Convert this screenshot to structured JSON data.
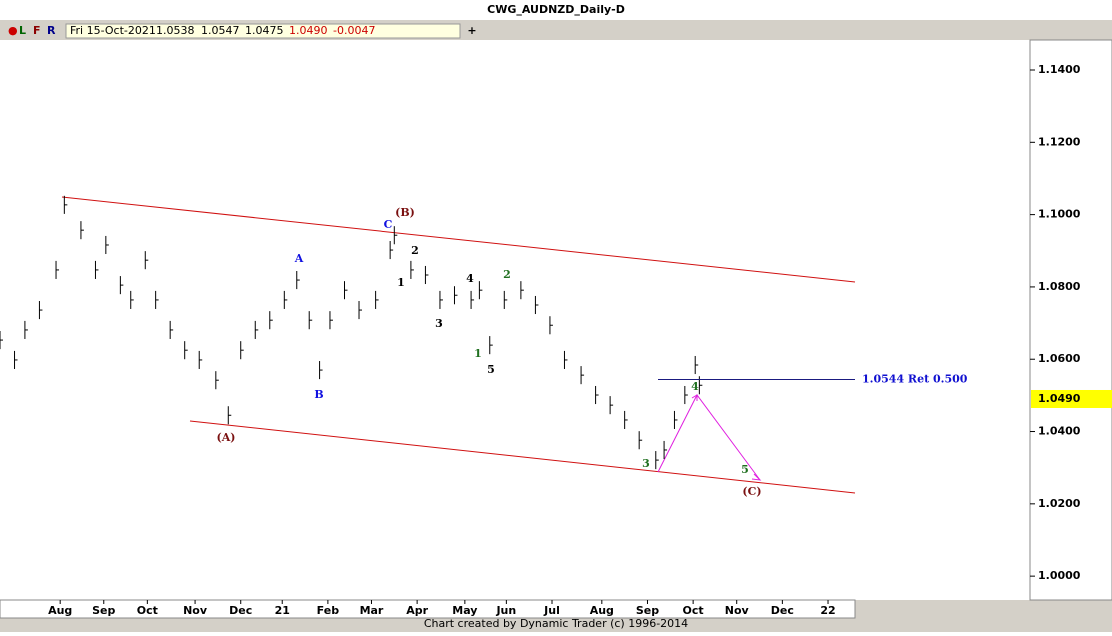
{
  "chart_data": {
    "type": "ohlc",
    "title": "CWG_AUDNZD_Daily-D",
    "info": {
      "menu": [
        "L",
        "F",
        "R"
      ],
      "date": "Fri 15-Oct-2021",
      "open": "1.0538",
      "high": "1.0547",
      "low": "1.0475",
      "close": "1.0490",
      "change": "-0.0047"
    },
    "footer": "Chart created by Dynamic Trader  (c) 1996-2014",
    "color": "#000000",
    "x": [
      0,
      7,
      12,
      19,
      27,
      31,
      39,
      46,
      51,
      58,
      63,
      70,
      75,
      82,
      89,
      96,
      104,
      110,
      116,
      123,
      130,
      137,
      143,
      149,
      154,
      159,
      166,
      173,
      181,
      188,
      190,
      198,
      205,
      212,
      219,
      227,
      231,
      236,
      243,
      251,
      258,
      265,
      272,
      280,
      287,
      294,
      301,
      308,
      316,
      320,
      325,
      330,
      335,
      337
    ],
    "high": [
      1.0678,
      1.0623,
      1.0706,
      1.0761,
      1.0872,
      1.1052,
      1.0982,
      1.0872,
      1.0941,
      1.083,
      1.0789,
      1.0899,
      1.0789,
      1.0706,
      1.065,
      1.0623,
      1.0567,
      1.047,
      1.065,
      1.0706,
      1.0733,
      1.0789,
      1.0844,
      1.0733,
      1.0595,
      1.0733,
      1.0816,
      1.0761,
      1.0789,
      1.0927,
      1.0968,
      1.0872,
      1.0858,
      1.0789,
      1.0802,
      1.0789,
      1.0816,
      1.0664,
      1.0789,
      1.0816,
      1.0775,
      1.0719,
      1.0623,
      1.0581,
      1.0526,
      1.0498,
      1.0457,
      1.0401,
      1.0346,
      1.0374,
      1.0457,
      1.0526,
      1.0609,
      1.0553
    ],
    "low": [
      1.0628,
      1.0573,
      1.0656,
      1.0711,
      1.0822,
      1.1002,
      1.0932,
      1.0822,
      1.0891,
      1.078,
      1.0739,
      1.0849,
      1.0739,
      1.0656,
      1.06,
      1.0573,
      1.0517,
      1.042,
      1.06,
      1.0656,
      1.0683,
      1.0739,
      1.0794,
      1.0683,
      1.0545,
      1.0683,
      1.0766,
      1.0711,
      1.0739,
      1.0877,
      1.0918,
      1.0822,
      1.0808,
      1.0739,
      1.0752,
      1.0739,
      1.0766,
      1.0614,
      1.0739,
      1.0766,
      1.0725,
      1.0669,
      1.0573,
      1.0531,
      1.0476,
      1.0448,
      1.0407,
      1.0351,
      1.0296,
      1.0324,
      1.0407,
      1.0476,
      1.0559,
      1.0503
    ],
    "close": [
      1.0653,
      1.0598,
      1.0681,
      1.0736,
      1.0847,
      1.1027,
      1.0957,
      1.0847,
      1.0916,
      1.0805,
      1.0764,
      1.0874,
      1.0764,
      1.0681,
      1.0625,
      1.0598,
      1.0542,
      1.0445,
      1.0625,
      1.0681,
      1.0708,
      1.0764,
      1.0819,
      1.0708,
      1.057,
      1.0708,
      1.0791,
      1.0736,
      1.0764,
      1.0902,
      1.0943,
      1.0847,
      1.0833,
      1.0764,
      1.0777,
      1.0764,
      1.0791,
      1.0639,
      1.0764,
      1.0791,
      1.075,
      1.0694,
      1.0598,
      1.0556,
      1.0501,
      1.0473,
      1.0432,
      1.0376,
      1.0321,
      1.0349,
      1.0432,
      1.0501,
      1.0584,
      1.0528
    ],
    "xlim": [
      0,
      412
    ],
    "xticks": [
      {
        "value": 29,
        "label": "Aug"
      },
      {
        "value": 50,
        "label": "Sep"
      },
      {
        "value": 71,
        "label": "Oct"
      },
      {
        "value": 94,
        "label": "Nov"
      },
      {
        "value": 116,
        "label": "Dec"
      },
      {
        "value": 136,
        "label": "21"
      },
      {
        "value": 158,
        "label": "Feb"
      },
      {
        "value": 179,
        "label": "Mar"
      },
      {
        "value": 201,
        "label": "Apr"
      },
      {
        "value": 224,
        "label": "May"
      },
      {
        "value": 244,
        "label": "Jun"
      },
      {
        "value": 266,
        "label": "Jul"
      },
      {
        "value": 290,
        "label": "Aug"
      },
      {
        "value": 312,
        "label": "Sep"
      },
      {
        "value": 334,
        "label": "Oct"
      },
      {
        "value": 355,
        "label": "Nov"
      },
      {
        "value": 377,
        "label": "Dec"
      },
      {
        "value": 399,
        "label": "22"
      }
    ],
    "ylim": [
      0.9934,
      1.1483
    ],
    "yticks": [
      {
        "value": 1.14,
        "label": "1.1400"
      },
      {
        "value": 1.12,
        "label": "1.1200"
      },
      {
        "value": 1.1,
        "label": "1.1000"
      },
      {
        "value": 1.08,
        "label": "1.0800"
      },
      {
        "value": 1.06,
        "label": "1.0600"
      },
      {
        "value": 1.04,
        "label": "1.0400"
      },
      {
        "value": 1.02,
        "label": "1.0200"
      },
      {
        "value": 1.0,
        "label": "1.0000"
      }
    ],
    "last_price": {
      "value": 1.049,
      "label": "1.0490"
    },
    "retracement": {
      "value": 1.0544,
      "label": "1.0544 Ret 0.500"
    },
    "annotations": [
      "(B)",
      "C",
      "2",
      "A",
      "1",
      "4",
      "3",
      "2",
      "1",
      "5",
      "B",
      "(A)",
      "3",
      "4",
      "5",
      "(C)"
    ]
  }
}
